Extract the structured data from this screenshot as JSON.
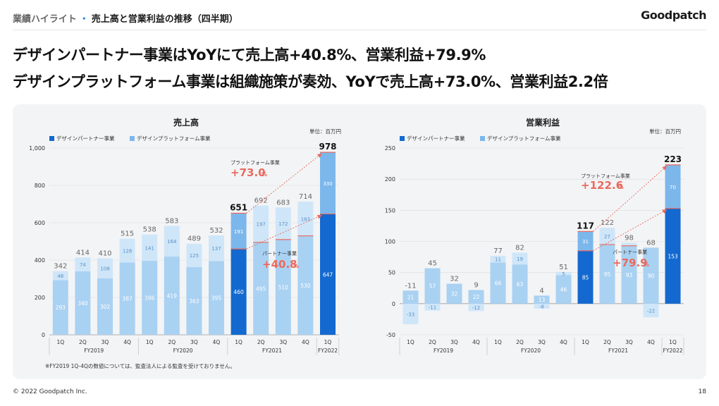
{
  "header": {
    "title_prefix": "業績ハイライト",
    "title": "売上高と営業利益の推移（四半期）",
    "logo": "Goodpatch"
  },
  "headline": {
    "line1": "デザインパートナー事業はYoYにて売上高+40.8%、営業利益+79.9%",
    "line2": "デザインプラットフォーム事業は組織施策が奏効、YoYで売上高+73.0%、営業利益2.2倍"
  },
  "footer": {
    "copyright": "© 2022 Goodpatch Inc.",
    "page": "18"
  },
  "colors": {
    "partner_highlight": "#1369cf",
    "partner_past": "#a9d1f2",
    "platform_highlight": "#7cb7ec",
    "platform_past": "#cfe6f9",
    "accent": "#ea6a5c"
  },
  "chart_data": [
    {
      "type": "bar",
      "stacked": true,
      "title": "売上高",
      "unit_label": "単位：百万円",
      "legend": [
        "デザインパートナー事業",
        "デザインプラットフォーム事業"
      ],
      "categories": [
        "1Q",
        "2Q",
        "3Q",
        "4Q",
        "1Q",
        "2Q",
        "3Q",
        "4Q",
        "1Q",
        "2Q",
        "3Q",
        "4Q",
        "1Q"
      ],
      "groups": [
        {
          "label": "FY2019",
          "count": 4
        },
        {
          "label": "FY2020",
          "count": 4
        },
        {
          "label": "FY2021",
          "count": 4
        },
        {
          "label": "FY2022",
          "count": 1
        }
      ],
      "series": [
        {
          "name": "デザインパートナー事業",
          "values": [
            293,
            340,
            302,
            387,
            396,
            419,
            363,
            395,
            460,
            495,
            510,
            530,
            647
          ]
        },
        {
          "name": "デザインプラットフォーム事業",
          "values": [
            48,
            74,
            108,
            128,
            141,
            164,
            125,
            137,
            191,
            197,
            172,
            183,
            330
          ]
        }
      ],
      "totals": [
        342,
        414,
        410,
        515,
        538,
        583,
        489,
        532,
        651,
        692,
        683,
        714,
        978
      ],
      "ylim": [
        0,
        1000
      ],
      "yticks": [
        "0",
        "200",
        "400",
        "600",
        "800",
        "1,000"
      ],
      "annotations": [
        {
          "label": "プラットフォーム事業",
          "value": "+73.0",
          "unit": "%"
        },
        {
          "label": "パートナー事業",
          "value": "+40.8",
          "unit": "%"
        }
      ],
      "note": "※FY2019 1Q-4Qの数値については、監査法人による監査を受けておりません。"
    },
    {
      "type": "bar",
      "stacked": true,
      "title": "営業利益",
      "unit_label": "単位：百万円",
      "legend": [
        "デザインパートナー事業",
        "デザインプラットフォーム事業"
      ],
      "categories": [
        "1Q",
        "2Q",
        "3Q",
        "4Q",
        "1Q",
        "2Q",
        "3Q",
        "4Q",
        "1Q",
        "2Q",
        "3Q",
        "4Q",
        "1Q"
      ],
      "groups": [
        {
          "label": "FY2019",
          "count": 4
        },
        {
          "label": "FY2020",
          "count": 4
        },
        {
          "label": "FY2021",
          "count": 4
        },
        {
          "label": "FY2022",
          "count": 1
        }
      ],
      "series": [
        {
          "name": "デザインパートナー事業",
          "values": [
            21,
            57,
            32,
            22,
            66,
            63,
            13,
            46,
            85,
            95,
            93,
            90,
            153
          ]
        },
        {
          "name": "デザインプラットフォーム事業",
          "values": [
            -33,
            -11,
            0,
            -12,
            11,
            19,
            -8,
            5,
            31,
            27,
            5,
            -22,
            70
          ]
        }
      ],
      "series_labels": [
        [
          "21",
          "57",
          "32",
          "22",
          "66",
          "63",
          "13",
          "46",
          "85",
          "95",
          "93",
          "90",
          "153"
        ],
        [
          "-33",
          "-11",
          "",
          "-12",
          "11",
          "19",
          "-8",
          "5",
          "31",
          "27",
          "",
          "-22",
          "70"
        ]
      ],
      "totals": [
        -11,
        45,
        32,
        9,
        77,
        82,
        4,
        51,
        117,
        122,
        98,
        68,
        223
      ],
      "ylim": [
        -50,
        250
      ],
      "yticks": [
        "-50",
        "0",
        "50",
        "100",
        "150",
        "200",
        "250"
      ],
      "annotations": [
        {
          "label": "プラットフォーム事業",
          "value": "+122.6",
          "unit": "%"
        },
        {
          "label": "パートナー事業",
          "value": "+79.9",
          "unit": "%"
        }
      ]
    }
  ]
}
